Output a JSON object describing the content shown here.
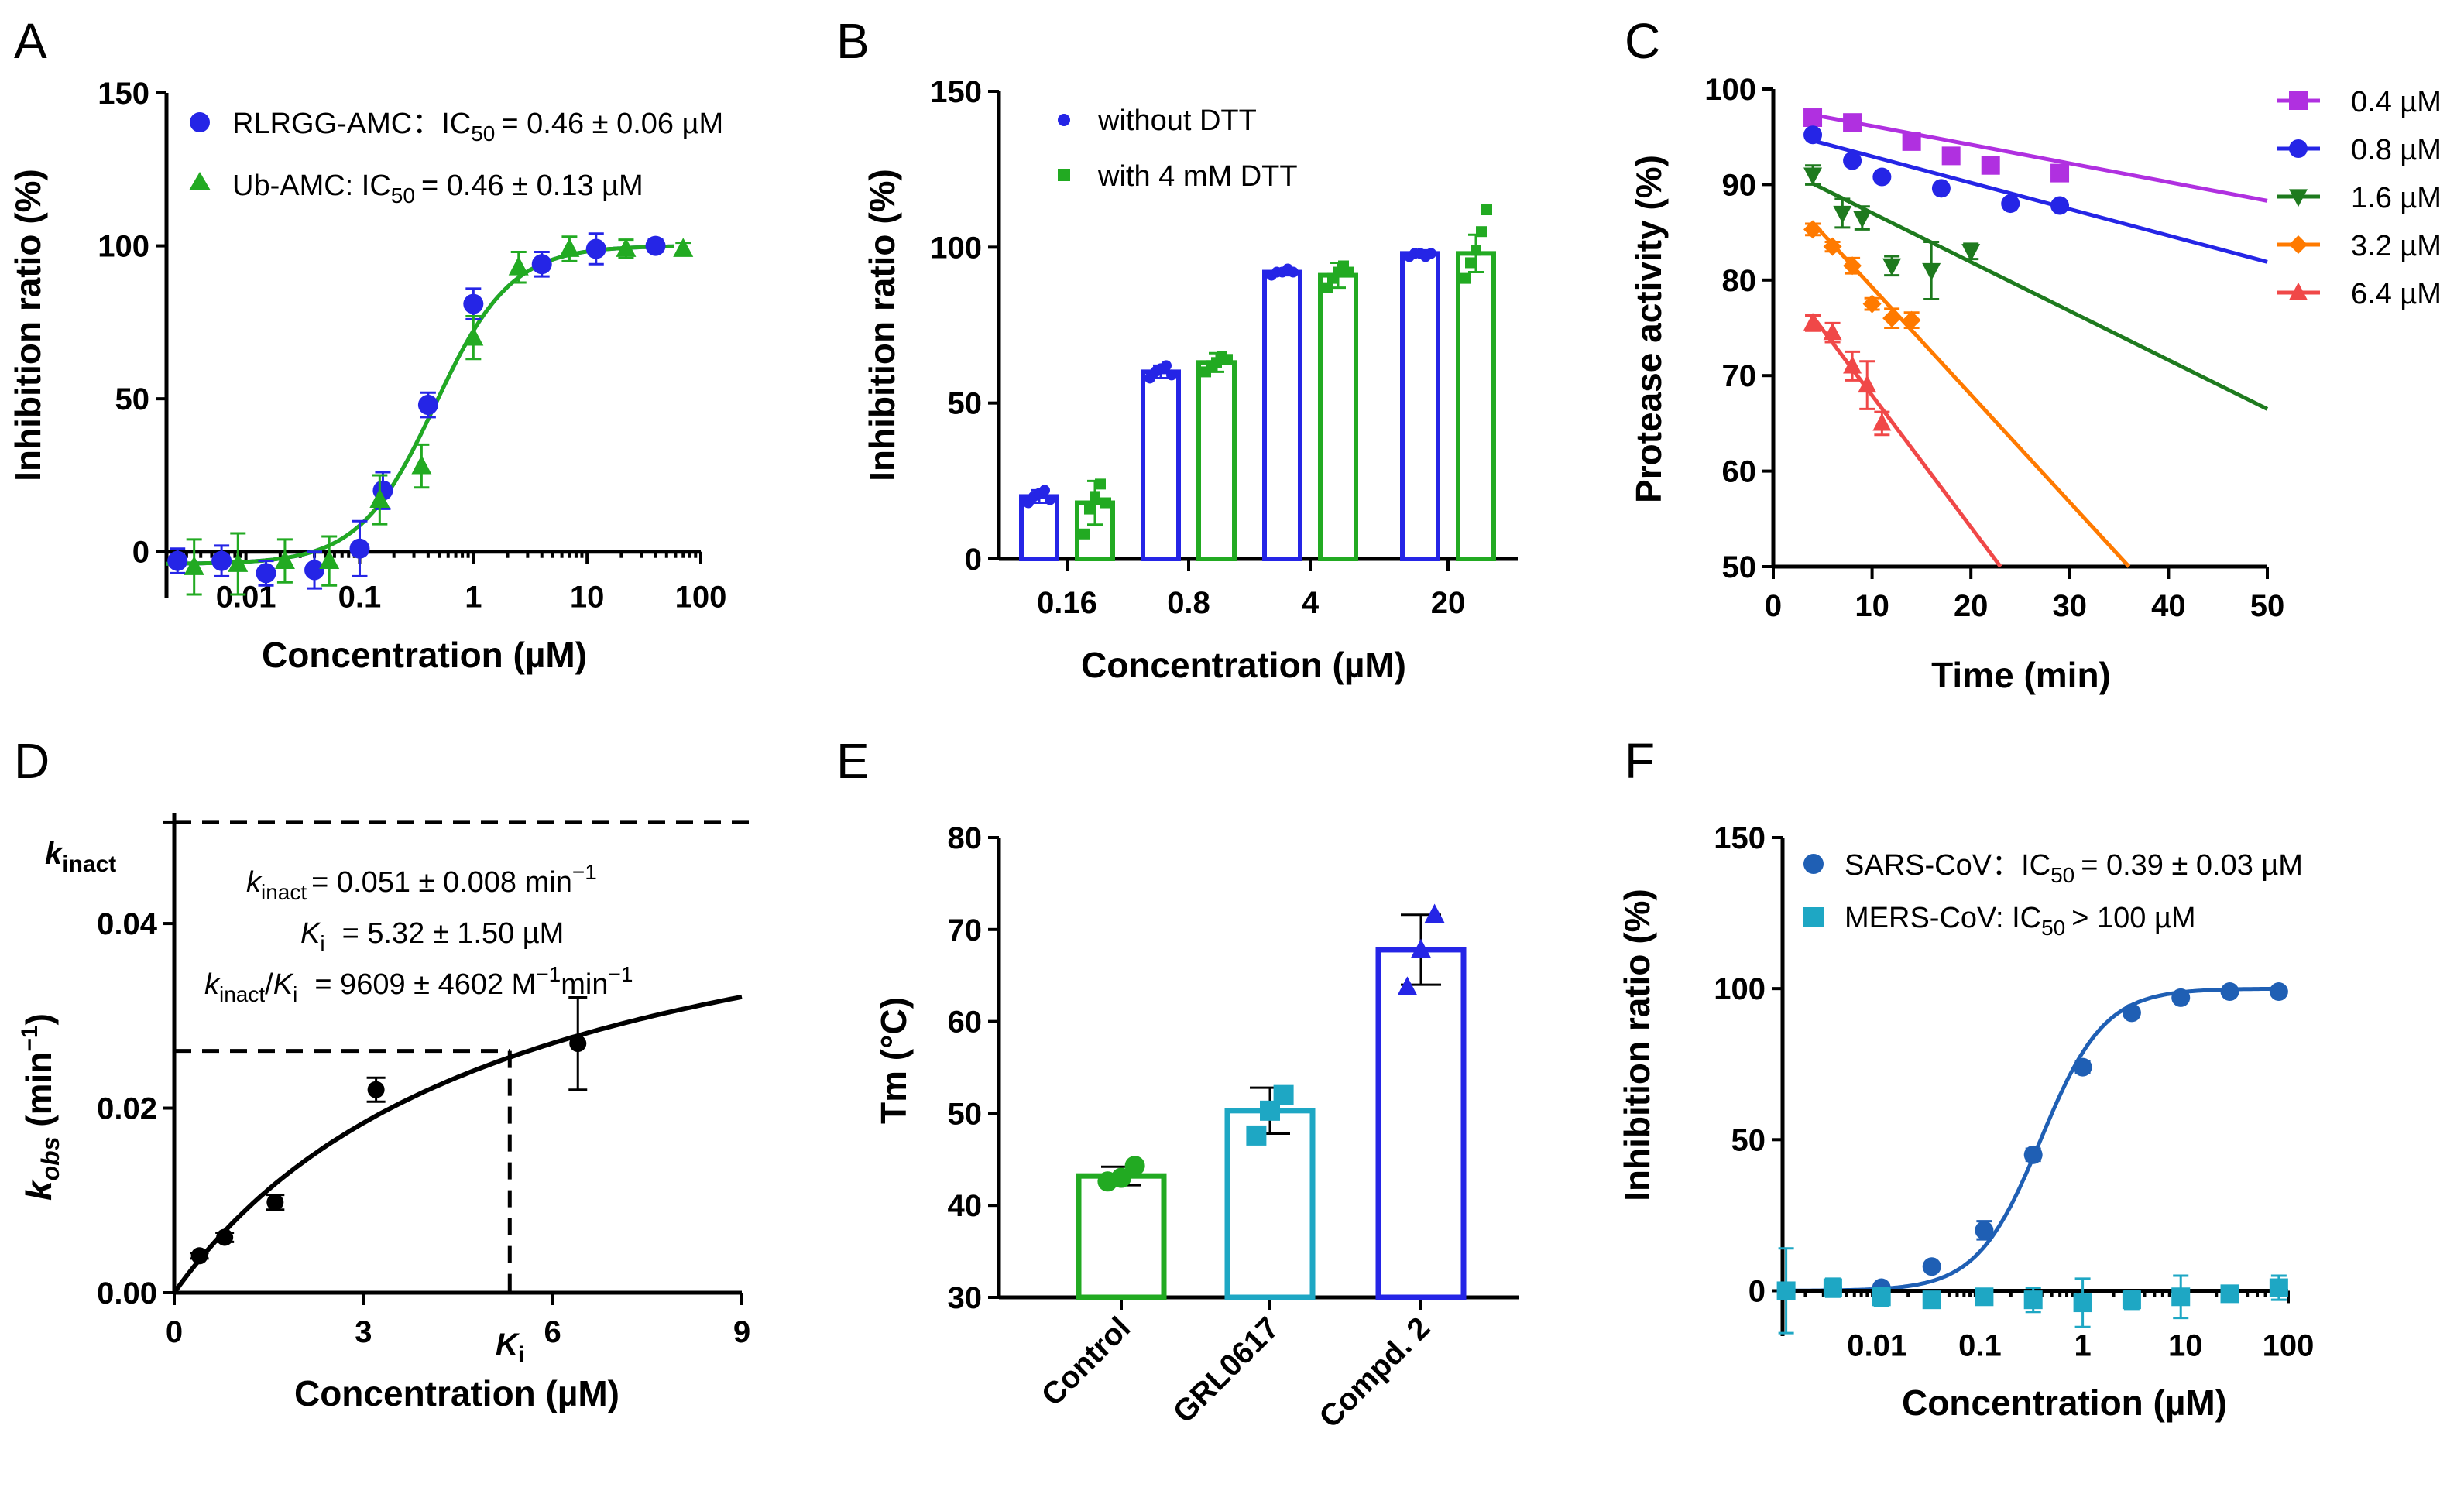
{
  "colors": {
    "blue": "#2525e6",
    "green": "#22aa22",
    "purple": "#b030e0",
    "darkgreen": "#1e7a1e",
    "orange": "#ff7a00",
    "red": "#f04848",
    "steel": "#1f5fb4",
    "teal": "#1ea7c4",
    "black": "#000000"
  },
  "chart_data": [
    {
      "panel": "A",
      "type": "scatter",
      "xscale": "log",
      "xlabel": "Concentration (µM)",
      "ylabel": "Inhibition ratio (%)",
      "xlim": [
        0.002,
        100
      ],
      "ylim": [
        -15,
        150
      ],
      "x_ticks": [
        0.01,
        0.1,
        1,
        10,
        100
      ],
      "x_tick_labels": [
        "0.01",
        "0.1",
        "1",
        "10",
        "100"
      ],
      "y_ticks": [
        0,
        50,
        100,
        150
      ],
      "y_tick_labels": [
        "0",
        "50",
        "100",
        "150"
      ],
      "series": [
        {
          "name": "RLRGG-AMC",
          "legend_label": "RLRGG-AMC：",
          "legend_ic50": "= 0.46 ± 0.06 µM",
          "color": "#2525e6",
          "marker": "circle",
          "x": [
            0.0025,
            0.0061,
            0.015,
            0.04,
            0.1,
            0.16,
            0.4,
            1.0,
            4.0,
            12.0,
            40.0
          ],
          "y": [
            -3,
            -3,
            -7,
            -6,
            1,
            20,
            48,
            81,
            94,
            99,
            100
          ],
          "err": [
            4,
            5,
            4,
            6,
            9,
            6,
            4,
            5,
            4,
            5,
            2
          ],
          "fit": {
            "bottom": -4,
            "top": 100,
            "ic50": 0.46,
            "hill": 1.3
          }
        },
        {
          "name": "Ub-AMC",
          "legend_label": "Ub-AMC: ",
          "legend_ic50": "= 0.46 ± 0.13 µM",
          "color": "#22aa22",
          "marker": "triangle",
          "x": [
            0.0035,
            0.0085,
            0.022,
            0.054,
            0.15,
            0.35,
            1.0,
            2.5,
            7.0,
            22.0,
            70.0
          ],
          "y": [
            -5,
            -4,
            -3,
            -3,
            17,
            28,
            70,
            93,
            99,
            99,
            99
          ],
          "err": [
            9,
            10,
            7,
            8,
            8,
            7,
            7,
            5,
            4,
            3,
            2
          ],
          "fit": {
            "bottom": -4,
            "top": 100,
            "ic50": 0.46,
            "hill": 1.3
          }
        }
      ]
    },
    {
      "panel": "B",
      "type": "bar",
      "xlabel": "Concentration (µM)",
      "ylabel": "Inhibition ratio (%)",
      "categories": [
        "0.16",
        "0.8",
        "4",
        "20"
      ],
      "ylim": [
        0,
        150
      ],
      "y_ticks": [
        0,
        50,
        100,
        150
      ],
      "y_tick_labels": [
        "0",
        "50",
        "100",
        "150"
      ],
      "series": [
        {
          "name": "without DTT",
          "color": "#2525e6",
          "values": [
            20,
            60,
            92,
            98
          ],
          "err": [
            2,
            2,
            1,
            1
          ],
          "points": [
            [
              18,
              20,
              21,
              22,
              19
            ],
            [
              58,
              60,
              61,
              62,
              59
            ],
            [
              91,
              92,
              92,
              93,
              92
            ],
            [
              97,
              98,
              98,
              97,
              98
            ]
          ]
        },
        {
          "name": "with 4 mM DTT",
          "color": "#22aa22",
          "values": [
            18,
            63,
            91,
            98
          ],
          "err": [
            7,
            3,
            4,
            6
          ],
          "points": [
            [
              8,
              16,
              20,
              24,
              18
            ],
            [
              60,
              62,
              63,
              65,
              64
            ],
            [
              87,
              90,
              92,
              94,
              92
            ],
            [
              90,
              95,
              99,
              105,
              112
            ]
          ]
        }
      ]
    },
    {
      "panel": "C",
      "type": "line",
      "xlabel": "Time (min)",
      "ylabel": "Protease activity (%)",
      "xlim": [
        0,
        50
      ],
      "ylim": [
        50,
        100
      ],
      "x_ticks": [
        0,
        10,
        20,
        30,
        40,
        50
      ],
      "x_tick_labels": [
        "0",
        "10",
        "20",
        "30",
        "40",
        "50"
      ],
      "y_ticks": [
        50,
        60,
        70,
        80,
        90,
        100
      ],
      "y_tick_labels": [
        "50",
        "60",
        "70",
        "80",
        "90",
        "100"
      ],
      "series": [
        {
          "name": "0.4 µM",
          "color": "#b030e0",
          "marker": "square",
          "x": [
            4,
            8,
            14,
            18,
            22,
            29
          ],
          "y": [
            97,
            96.5,
            94.5,
            93,
            92,
            91.2
          ],
          "fit": [
            [
              4,
              97.3
            ],
            [
              50,
              88.3
            ]
          ]
        },
        {
          "name": "0.8 µM",
          "color": "#2525e6",
          "marker": "circle",
          "x": [
            4,
            8,
            11,
            17,
            24,
            29
          ],
          "y": [
            95.2,
            92.5,
            90.8,
            89.6,
            88,
            87.8
          ],
          "fit": [
            [
              4,
              94.6
            ],
            [
              50,
              81.9
            ]
          ]
        },
        {
          "name": "1.6 µM",
          "color": "#1e7a1e",
          "marker": "triangle-down",
          "x": [
            4,
            7,
            9,
            12,
            16,
            20
          ],
          "y": [
            91,
            87,
            86.5,
            81.5,
            81,
            83
          ],
          "err": [
            1,
            1.5,
            1.2,
            1,
            3,
            0.8
          ],
          "fit": [
            [
              4,
              90.1
            ],
            [
              50,
              66.5
            ]
          ]
        },
        {
          "name": "3.2 µM",
          "color": "#ff7a00",
          "marker": "diamond",
          "x": [
            4,
            6,
            8,
            10,
            12,
            14
          ],
          "y": [
            85.3,
            83.5,
            81.5,
            77.5,
            76,
            75.8
          ],
          "err": [
            0.6,
            0.5,
            0.8,
            0.6,
            1,
            0.8
          ],
          "fit": [
            [
              4,
              86
            ],
            [
              36,
              50
            ]
          ]
        },
        {
          "name": "6.4 µM",
          "color": "#f04848",
          "marker": "triangle",
          "x": [
            4,
            6,
            8,
            9.5,
            11
          ],
          "y": [
            75.5,
            74.5,
            71,
            69,
            65
          ],
          "err": [
            0.8,
            1,
            1.5,
            2.5,
            1.2
          ],
          "fit": [
            [
              4,
              76.2
            ],
            [
              23,
              50
            ]
          ]
        }
      ]
    },
    {
      "panel": "D",
      "type": "scatter",
      "xlabel": "Concentration (µM)",
      "ylabel": "k_obs (min⁻¹)",
      "xlim": [
        0,
        9
      ],
      "ylim": [
        0,
        0.052
      ],
      "x_ticks": [
        0,
        3,
        6,
        9
      ],
      "x_tick_labels": [
        "0",
        "3",
        "6",
        "9"
      ],
      "y_ticks": [
        0,
        0.02,
        0.04
      ],
      "y_tick_labels": [
        "0.00",
        "0.02",
        "0.04"
      ],
      "x": [
        0.4,
        0.8,
        1.6,
        3.2,
        6.4
      ],
      "y": [
        0.004,
        0.006,
        0.0098,
        0.022,
        0.027
      ],
      "err": [
        0.0003,
        0.0005,
        0.0008,
        0.0013,
        0.005
      ],
      "fit": {
        "kinact": 0.051,
        "Ki": 5.32
      },
      "kinact_line": 0.051,
      "ki_marker": {
        "x": 5.32,
        "y": 0.0262
      }
    },
    {
      "panel": "E",
      "type": "bar",
      "ylabel": "Tm (°C)",
      "categories": [
        "Control",
        "GRL0617",
        "Compd. 2"
      ],
      "values": [
        43.2,
        50.3,
        67.8
      ],
      "err": [
        1.0,
        2.5,
        3.8
      ],
      "points": [
        [
          42.6,
          43.0,
          44.3
        ],
        [
          47.6,
          50.3,
          52.0
        ],
        [
          63.7,
          67.8,
          71.6
        ]
      ],
      "colors": [
        "#22aa22",
        "#1ea7c4",
        "#2525e6"
      ],
      "markers": [
        "circle",
        "square",
        "triangle"
      ],
      "ylim": [
        30,
        80
      ],
      "y_ticks": [
        30,
        40,
        50,
        60,
        70,
        80
      ],
      "y_tick_labels": [
        "30",
        "40",
        "50",
        "60",
        "70",
        "80"
      ]
    },
    {
      "panel": "F",
      "type": "scatter",
      "xscale": "log",
      "xlabel": "Concentration (µM)",
      "ylabel": "Inhibition ratio (%)",
      "xlim": [
        0.0012,
        100
      ],
      "ylim": [
        -15,
        150
      ],
      "x_ticks": [
        0.01,
        0.1,
        1,
        10,
        100
      ],
      "x_tick_labels": [
        "0.01",
        "0.1",
        "1",
        "10",
        "100"
      ],
      "y_ticks": [
        0,
        50,
        100,
        150
      ],
      "y_tick_labels": [
        "0",
        "50",
        "100",
        "150"
      ],
      "series": [
        {
          "name": "SARS-CoV",
          "legend_label": "SARS-CoV：",
          "legend_ic50": "= 0.39 ± 0.03 µM",
          "color": "#1f5fb4",
          "marker": "circle",
          "x": [
            0.0013,
            0.0037,
            0.011,
            0.034,
            0.11,
            0.33,
            1.0,
            3.0,
            9.0,
            27.0,
            81.0
          ],
          "y": [
            0,
            1,
            1,
            8,
            20,
            45,
            74,
            92,
            97,
            99,
            99
          ],
          "err": [
            1,
            0,
            0,
            1,
            3,
            2,
            2,
            1,
            1,
            1,
            1
          ],
          "fit": {
            "bottom": 0,
            "top": 100,
            "ic50": 0.39,
            "hill": 1.4
          }
        },
        {
          "name": "MERS-CoV",
          "legend_label": "MERS-CoV: ",
          "legend_ic50": "> 100 µM",
          "color": "#1ea7c4",
          "marker": "square",
          "x": [
            0.0013,
            0.0037,
            0.011,
            0.034,
            0.11,
            0.33,
            1.0,
            3.0,
            9.0,
            27.0,
            81.0
          ],
          "y": [
            0,
            1,
            -2,
            -3,
            -2,
            -3,
            -4,
            -3,
            -2,
            -1,
            1
          ],
          "err": [
            14,
            3,
            3,
            2,
            2,
            4,
            8,
            3,
            7,
            2,
            4
          ],
          "fit": {
            "bottom": 0,
            "top": 0,
            "ic50": 1,
            "hill": 1
          }
        }
      ]
    }
  ],
  "annotations": {
    "D": {
      "kinact_axis_sym": "k",
      "kinact_axis_sub": "inact",
      "ki_axis_sym": "K",
      "ki_axis_sub": "i",
      "line1_sym": "k",
      "line1_sub": "inact",
      "line1_value": "= 0.051 ± 0.008 min",
      "line1_sup": "−1",
      "line2_sym": "K",
      "line2_sub": "i",
      "line2_value": "= 5.32 ± 1.50 µM",
      "line3_sym1": "k",
      "line3_sub1": "inact",
      "line3_slash": "/",
      "line3_sym2": "K",
      "line3_sub2": "i",
      "line3_value": "= 9609 ± 4602 M",
      "line3_sup1": "−1",
      "line3_unit": "min",
      "line3_sup2": "−1",
      "ylabel_sym": "k",
      "ylabel_sub": "obs",
      "ylabel_unit": " (min",
      "ylabel_sup": "−1",
      "ylabel_close": ")"
    },
    "ic50": {
      "prefix": "IC",
      "sub": "50"
    }
  },
  "panel_letters": [
    "A",
    "B",
    "C",
    "D",
    "E",
    "F"
  ]
}
